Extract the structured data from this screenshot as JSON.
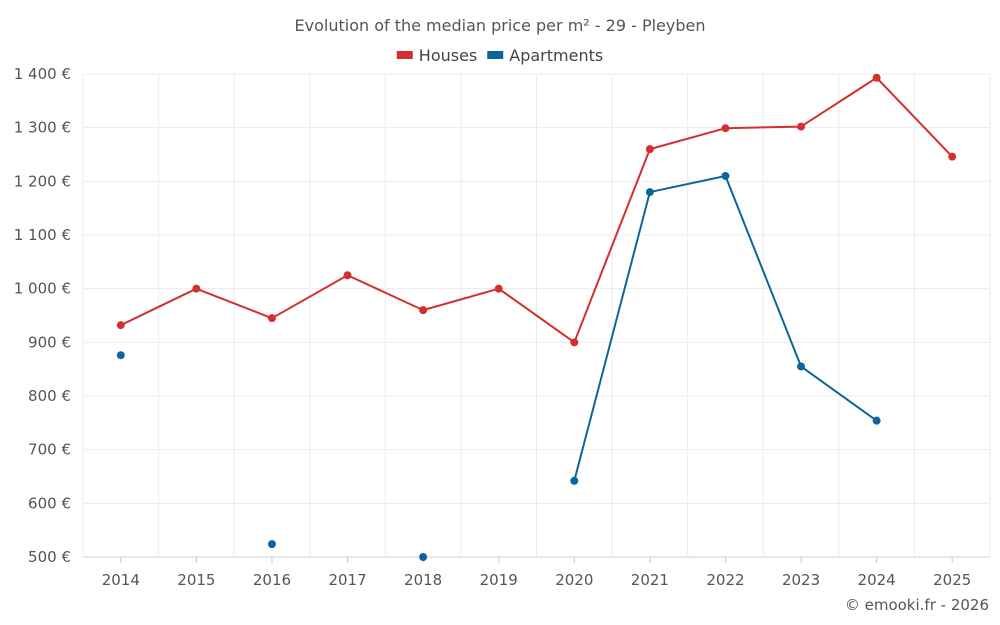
{
  "chart_data": {
    "type": "line",
    "title": "Evolution of the median price per m² - 29 - Pleyben",
    "categories": [
      "2014",
      "2015",
      "2016",
      "2017",
      "2018",
      "2019",
      "2020",
      "2021",
      "2022",
      "2023",
      "2024",
      "2025"
    ],
    "ylim": [
      500,
      1400
    ],
    "yticks": [
      500,
      600,
      700,
      800,
      900,
      1000,
      1100,
      1200,
      1300,
      1400
    ],
    "ytick_labels": [
      "500 €",
      "600 €",
      "700 €",
      "800 €",
      "900 €",
      "1 000 €",
      "1 100 €",
      "1 200 €",
      "1 300 €",
      "1 400 €"
    ],
    "grid": true,
    "legend_position": "top-center",
    "series": [
      {
        "name": "Houses",
        "color": "#d32f2f",
        "values": [
          932,
          1000,
          945,
          1025,
          960,
          1000,
          900,
          1260,
          1299,
          1302,
          1393,
          1246
        ]
      },
      {
        "name": "Apartments",
        "color": "#0d6699",
        "values": [
          876,
          null,
          524,
          null,
          500,
          null,
          642,
          1180,
          1210,
          855,
          754,
          null
        ]
      }
    ],
    "credit": "© emooki.fr - 2026"
  }
}
